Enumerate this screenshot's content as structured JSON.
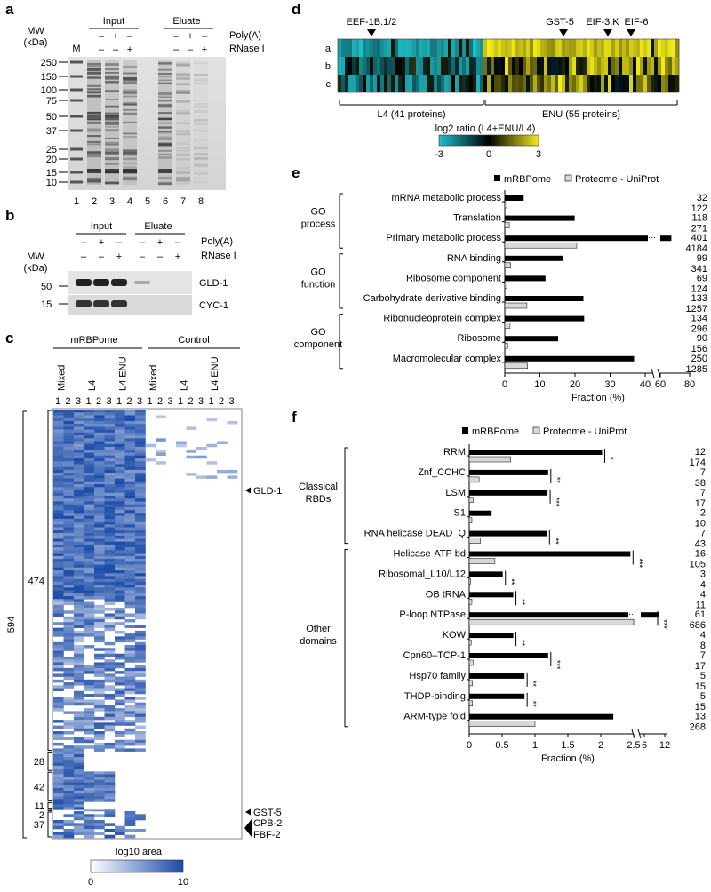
{
  "panels": {
    "a": {
      "letter": "a",
      "mw_label_1": "MW",
      "mw_label_2": "(kDa)",
      "marker": "M",
      "input": "Input",
      "eluate": "Eluate",
      "polya": "Poly(A)",
      "rnase": "RNase I",
      "sign_rows": {
        "polya": [
          "–",
          "+",
          "–",
          "–",
          "+",
          "–"
        ],
        "rnase": [
          "–",
          "–",
          "+",
          "–",
          "–",
          "+"
        ]
      },
      "mw_ticks": [
        "250",
        "150",
        "100",
        "75",
        "50",
        "37",
        "25",
        "20",
        "15",
        "10"
      ],
      "lanes": [
        "1",
        "2",
        "3",
        "4",
        "5",
        "6",
        "7",
        "8"
      ]
    },
    "b": {
      "letter": "b",
      "input": "Input",
      "eluate": "Eluate",
      "polya": "Poly(A)",
      "rnase": "RNase I",
      "mw_label_1": "MW",
      "mw_label_2": "(kDa)",
      "sign_rows": {
        "polya": [
          "–",
          "+",
          "–",
          "–",
          "+",
          "–"
        ],
        "rnase": [
          "–",
          "–",
          "+",
          "–",
          "–",
          "+"
        ]
      },
      "mw_ticks": [
        "50",
        "15"
      ],
      "bands": [
        "GLD-1",
        "CYC-1"
      ]
    },
    "c": {
      "letter": "c",
      "group_mrbpome": "mRBPome",
      "group_control": "Control",
      "conditions": [
        "Mixed",
        "L4",
        "L4 ENU",
        "Mixed",
        "L4",
        "L4 ENU"
      ],
      "replicates": [
        "1",
        "2",
        "3"
      ],
      "total": "594",
      "clusters": [
        "474",
        "28",
        "42",
        "11",
        "2",
        "37"
      ],
      "arrow_labels": [
        "GLD-1",
        "GST-5",
        "CPB-2",
        "FBF-2"
      ],
      "scale_title": "log10 area",
      "scale_min": "0",
      "scale_max": "10"
    },
    "d": {
      "letter": "d",
      "row_labels": [
        "a",
        "b",
        "c"
      ],
      "markers": [
        "EEF-1B.1/2",
        "GST-5",
        "EIF-3.K",
        "EIF-6"
      ],
      "groups": [
        "L4 (41 proteins)",
        "ENU (55 proteins)"
      ],
      "scale_title": "log2 ratio (L4+ENU/L4)",
      "scale_ticks": [
        "-3",
        "0",
        "3"
      ]
    },
    "e": {
      "letter": "e",
      "legend": [
        "mRBPome",
        "Proteome - UniProt"
      ],
      "group_labels": [
        [
          "GO",
          "process"
        ],
        [
          "GO",
          "function"
        ],
        [
          "GO",
          "component"
        ]
      ],
      "xlabel": "Fraction (%)",
      "xticks": [
        "0",
        "10",
        "20",
        "30",
        "40",
        "60",
        "80"
      ]
    },
    "f": {
      "letter": "f",
      "legend": [
        "mRBPome",
        "Proteome - UniProt"
      ],
      "group_labels": [
        [
          "Classical",
          "RBDs"
        ],
        [
          "Other",
          "domains"
        ]
      ],
      "xlabel": "Fraction (%)",
      "xticks": [
        "0",
        "0.5",
        "1",
        "1.5",
        "2",
        "2.5",
        "6",
        "12"
      ]
    }
  },
  "chart_data": [
    {
      "type": "heatmap",
      "panel": "d",
      "rows": [
        "a",
        "b",
        "c"
      ],
      "groups": [
        {
          "name": "L4 (41 proteins)",
          "count": 41
        },
        {
          "name": "ENU (55 proteins)",
          "count": 55
        }
      ],
      "colorbar_range": [
        -3,
        3
      ],
      "colors": {
        "low": "#20c0c8",
        "mid": "#000000",
        "high": "#f2ec1a"
      }
    },
    {
      "type": "heatmap",
      "panel": "c",
      "columns": [
        "Mixed 1",
        "Mixed 2",
        "Mixed 3",
        "L4 1",
        "L4 2",
        "L4 3",
        "L4 ENU 1",
        "L4 ENU 2",
        "L4 ENU 3",
        "Control Mixed 1",
        "Control Mixed 2",
        "Control Mixed 3",
        "Control L4 1",
        "Control L4 2",
        "Control L4 3",
        "Control L4 ENU 1",
        "Control L4 ENU 2",
        "Control L4 ENU 3"
      ],
      "cluster_sizes": [
        474,
        28,
        42,
        11,
        2,
        37
      ],
      "total": 594,
      "colorbar_range": [
        0,
        10
      ],
      "colors": {
        "low": "#ffffff",
        "high": "#1a4aa8"
      }
    },
    {
      "type": "bar",
      "panel": "e",
      "categories": [
        "mRNA metabolic process",
        "Translation",
        "Primary metabolic process",
        "RNA binding",
        "Ribosome component",
        "Carbohydrate derivative binding",
        "Ribonucleoprotein complex",
        "Ribosome",
        "Macromolecular complex"
      ],
      "series": [
        {
          "name": "mRBPome",
          "values": [
            5.4,
            19.9,
            67.5,
            16.7,
            11.6,
            22.4,
            22.6,
            15.2,
            42.1
          ]
        },
        {
          "name": "Proteome - UniProt",
          "values": [
            0.6,
            1.3,
            20.5,
            1.7,
            0.6,
            6.3,
            1.5,
            0.8,
            6.5
          ]
        }
      ],
      "counts_mrbpome": [
        "32",
        "118",
        "401",
        "99",
        "69",
        "133",
        "134",
        "90",
        "250"
      ],
      "counts_proteome": [
        "122",
        "271",
        "4184",
        "341",
        "124",
        "1257",
        "296",
        "156",
        "1285"
      ],
      "xlabel": "Fraction (%)",
      "xlim": [
        0,
        80
      ]
    },
    {
      "type": "bar",
      "panel": "f",
      "categories": [
        "RRM",
        "Znf_CCHC",
        "LSM",
        "S1",
        "RNA helicase DEAD_Q",
        "Helicase-ATP bd",
        "Ribosomal_L10/L12",
        "OB tRNA",
        "P-loop NTPase",
        "KOW",
        "Cpn60–TCP-1",
        "Hsp70 family",
        "THDP-binding",
        "ARM-type fold"
      ],
      "series": [
        {
          "name": "mRBPome",
          "values": [
            2.02,
            1.2,
            1.19,
            0.34,
            1.18,
            2.45,
            0.51,
            0.67,
            10.3,
            0.67,
            1.2,
            0.84,
            0.84,
            2.19
          ]
        },
        {
          "name": "Proteome - UniProt",
          "values": [
            0.63,
            0.15,
            0.06,
            0.04,
            0.17,
            0.39,
            0.02,
            0.04,
            2.5,
            0.03,
            0.06,
            0.05,
            0.05,
            1.0
          ]
        }
      ],
      "counts_mrbpome": [
        "12",
        "7",
        "7",
        "2",
        "7",
        "16",
        "3",
        "4",
        "61",
        "4",
        "7",
        "5",
        "5",
        "13"
      ],
      "counts_proteome": [
        "174",
        "38",
        "17",
        "10",
        "43",
        "105",
        "4",
        "11",
        "686",
        "8",
        "17",
        "15",
        "15",
        "268"
      ],
      "significance": [
        "*",
        "**",
        "***",
        "",
        "**",
        "***",
        "**",
        "**",
        "***",
        "**",
        "***",
        "**",
        "**",
        ""
      ],
      "xlabel": "Fraction (%)",
      "xlim": [
        0,
        12
      ]
    }
  ]
}
